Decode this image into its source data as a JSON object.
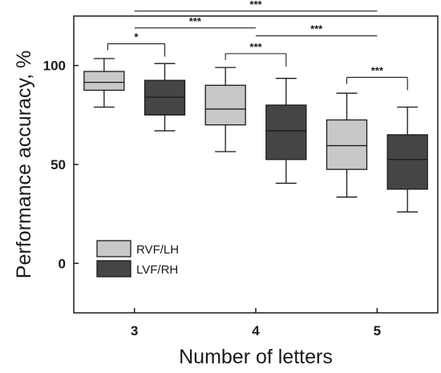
{
  "chart_data": {
    "type": "box",
    "xlabel": "Number of letters",
    "ylabel": "Performance accuracy, %",
    "categories": [
      "3",
      "4",
      "5"
    ],
    "yticks": [
      0,
      50,
      100
    ],
    "ylim": [
      -25,
      125
    ],
    "xlim": [
      2.5,
      5.5
    ],
    "legend_position": "bottom-left",
    "series": [
      {
        "name": "RVF/LH",
        "color": "#c8c8c8",
        "boxes": [
          {
            "category": "3",
            "min": 79,
            "q1": 87.5,
            "median": 91.5,
            "q3": 97,
            "max": 103.5
          },
          {
            "category": "4",
            "min": 56.5,
            "q1": 70,
            "median": 78,
            "q3": 90,
            "max": 99
          },
          {
            "category": "5",
            "min": 33.5,
            "q1": 47.5,
            "median": 59.5,
            "q3": 72.5,
            "max": 86
          }
        ]
      },
      {
        "name": "LVF/RH",
        "color": "#454545",
        "boxes": [
          {
            "category": "3",
            "min": 67,
            "q1": 75,
            "median": 84,
            "q3": 92.5,
            "max": 101
          },
          {
            "category": "4",
            "min": 40.5,
            "q1": 52.5,
            "median": 67,
            "q3": 80,
            "max": 93.5
          },
          {
            "category": "5",
            "min": 26,
            "q1": 37.5,
            "median": 52.5,
            "q3": 65,
            "max": 79
          }
        ]
      }
    ],
    "significance": [
      {
        "label": "***",
        "type": "line",
        "x1": 3,
        "x2": 5,
        "y": 127.5
      },
      {
        "label": "***",
        "type": "line",
        "x1": 3,
        "x2": 4,
        "y": 119
      },
      {
        "label": "***",
        "type": "line",
        "x1": 4,
        "x2": 5,
        "y": 115
      },
      {
        "label": "*",
        "type": "bracket",
        "x1": 2.78,
        "x2": 3.25,
        "y": 111
      },
      {
        "label": "***",
        "type": "bracket",
        "x1": 3.75,
        "x2": 4.25,
        "y": 106
      },
      {
        "label": "***",
        "type": "bracket",
        "x1": 4.75,
        "x2": 5.25,
        "y": 94
      }
    ]
  }
}
